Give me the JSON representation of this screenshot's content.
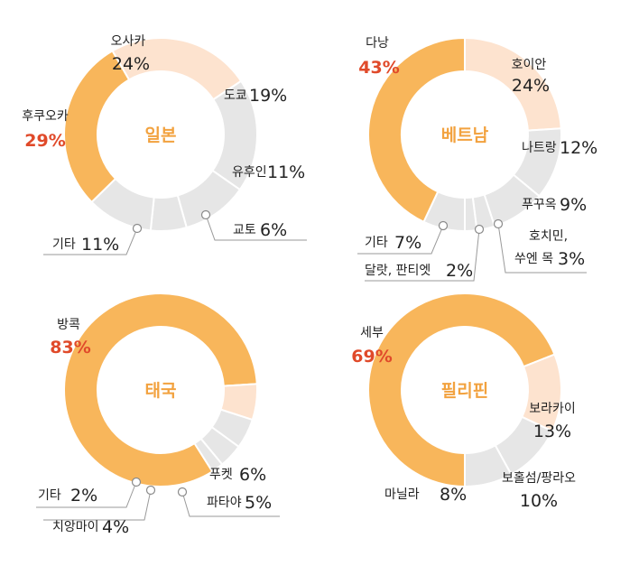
{
  "colors": {
    "major": "#f8b65b",
    "second": "#fde3cf",
    "other": "#e6e6e6",
    "highlight_text": "#e04a2a",
    "center_text": "#f2a23f"
  },
  "chart_data": [
    {
      "type": "pie",
      "title": "일본",
      "slices": [
        {
          "name": "오사카",
          "value": 24,
          "label": "24%"
        },
        {
          "name": "도쿄",
          "value": 19,
          "label": "19%"
        },
        {
          "name": "유후인",
          "value": 11,
          "label": "11%"
        },
        {
          "name": "교토",
          "value": 6,
          "label": "6%"
        },
        {
          "name": "기타",
          "value": 11,
          "label": "11%"
        },
        {
          "name": "후쿠오카",
          "value": 29,
          "label": "29%"
        }
      ]
    },
    {
      "type": "pie",
      "title": "베트남",
      "slices": [
        {
          "name": "호이안",
          "value": 24,
          "label": "24%"
        },
        {
          "name": "나트랑",
          "value": 12,
          "label": "12%"
        },
        {
          "name": "푸꾸옥",
          "value": 9,
          "label": "9%"
        },
        {
          "name": "호치민, 쑤엔 목",
          "value": 3,
          "label": "3%"
        },
        {
          "name": "달랏, 판티엣",
          "value": 2,
          "label": "2%"
        },
        {
          "name": "기타",
          "value": 7,
          "label": "7%"
        },
        {
          "name": "다낭",
          "value": 43,
          "label": "43%"
        }
      ]
    },
    {
      "type": "pie",
      "title": "태국",
      "slices": [
        {
          "name": "방콕",
          "value": 83,
          "label": "83%"
        },
        {
          "name": "푸켓",
          "value": 6,
          "label": "6%"
        },
        {
          "name": "파타야",
          "value": 5,
          "label": "5%"
        },
        {
          "name": "치앙마이",
          "value": 4,
          "label": "4%"
        },
        {
          "name": "기타",
          "value": 2,
          "label": "2%"
        }
      ]
    },
    {
      "type": "pie",
      "title": "필리핀",
      "slices": [
        {
          "name": "세부",
          "value": 69,
          "label": "69%"
        },
        {
          "name": "보라카이",
          "value": 13,
          "label": "13%"
        },
        {
          "name": "보홀섬/팡라오",
          "value": 10,
          "label": "10%"
        },
        {
          "name": "마닐라",
          "value": 8,
          "label": "8%"
        }
      ]
    }
  ]
}
